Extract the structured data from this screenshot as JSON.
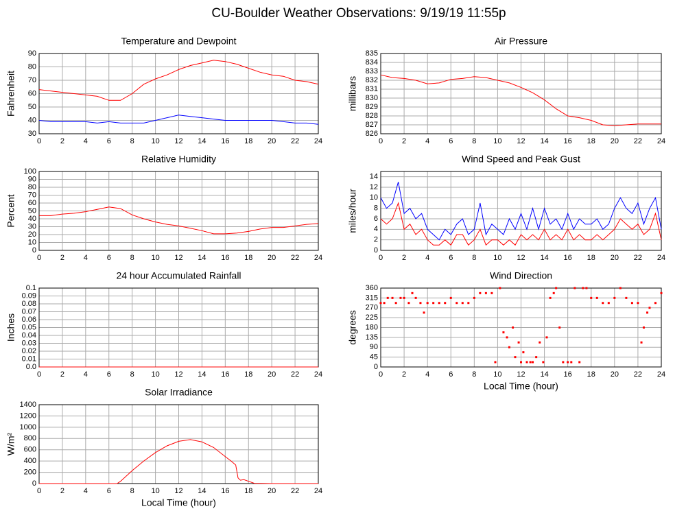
{
  "title": "CU-Boulder Weather Observations: 9/19/19 11:55p",
  "chart_data": [
    {
      "type": "line",
      "title": "Temperature and Dewpoint",
      "ylabel": "Fahrenheit",
      "x": [
        0,
        1,
        2,
        3,
        4,
        5,
        6,
        7,
        8,
        9,
        10,
        11,
        12,
        13,
        14,
        15,
        16,
        17,
        18,
        19,
        20,
        21,
        22,
        23,
        24
      ],
      "series": [
        {
          "color": "#ff0000",
          "values": [
            63,
            62,
            61,
            60,
            59,
            58,
            55,
            55,
            60,
            67,
            71,
            74,
            78,
            81,
            83,
            85,
            84,
            82,
            79,
            76,
            74,
            73,
            70,
            69,
            67
          ]
        },
        {
          "color": "#0000ff",
          "values": [
            40,
            39,
            39,
            39,
            39,
            38,
            39,
            38,
            38,
            38,
            40,
            42,
            44,
            43,
            42,
            41,
            40,
            40,
            40,
            40,
            40,
            39,
            38,
            38,
            37
          ]
        }
      ],
      "xlim": [
        0,
        24
      ],
      "xticks": [
        0,
        2,
        4,
        6,
        8,
        10,
        12,
        14,
        16,
        18,
        20,
        22,
        24
      ],
      "ylim": [
        30,
        90
      ],
      "yticks": [
        30,
        40,
        50,
        60,
        70,
        80,
        90
      ],
      "grid": true
    },
    {
      "type": "line",
      "title": "Air Pressure",
      "ylabel": "millibars",
      "x": [
        0,
        1,
        2,
        3,
        4,
        5,
        6,
        7,
        8,
        9,
        10,
        11,
        12,
        13,
        14,
        15,
        16,
        17,
        18,
        19,
        20,
        21,
        22,
        23,
        24
      ],
      "series": [
        {
          "color": "#ff0000",
          "values": [
            832.6,
            832.3,
            832.2,
            832.0,
            831.6,
            831.7,
            832.1,
            832.2,
            832.4,
            832.3,
            832.0,
            831.7,
            831.2,
            830.6,
            829.8,
            828.8,
            828.0,
            827.8,
            827.5,
            827.0,
            826.9,
            827.0,
            827.1,
            827.1,
            827.1
          ]
        }
      ],
      "xlim": [
        0,
        24
      ],
      "xticks": [
        0,
        2,
        4,
        6,
        8,
        10,
        12,
        14,
        16,
        18,
        20,
        22,
        24
      ],
      "ylim": [
        826,
        835
      ],
      "yticks": [
        826,
        827,
        828,
        829,
        830,
        831,
        832,
        833,
        834,
        835
      ],
      "grid": true
    },
    {
      "type": "line",
      "title": "Relative Humidity",
      "ylabel": "Percent",
      "x": [
        0,
        1,
        2,
        3,
        4,
        5,
        6,
        7,
        8,
        9,
        10,
        11,
        12,
        13,
        14,
        15,
        16,
        17,
        18,
        19,
        20,
        21,
        22,
        23,
        24
      ],
      "series": [
        {
          "color": "#ff0000",
          "values": [
            44,
            44,
            46,
            47,
            49,
            52,
            55,
            53,
            45,
            40,
            36,
            33,
            31,
            28,
            25,
            21,
            21,
            22,
            24,
            27,
            29,
            29,
            31,
            33,
            34
          ]
        }
      ],
      "xlim": [
        0,
        24
      ],
      "xticks": [
        0,
        2,
        4,
        6,
        8,
        10,
        12,
        14,
        16,
        18,
        20,
        22,
        24
      ],
      "ylim": [
        0,
        100
      ],
      "yticks": [
        0,
        10,
        20,
        30,
        40,
        50,
        60,
        70,
        80,
        90,
        100
      ],
      "grid": true
    },
    {
      "type": "line",
      "title": "Wind Speed and Peak Gust",
      "ylabel": "miles/hour",
      "x": [
        0,
        0.5,
        1,
        1.5,
        2,
        2.5,
        3,
        3.5,
        4,
        4.5,
        5,
        5.5,
        6,
        6.5,
        7,
        7.5,
        8,
        8.5,
        9,
        9.5,
        10,
        10.5,
        11,
        11.5,
        12,
        12.5,
        13,
        13.5,
        14,
        14.5,
        15,
        15.5,
        16,
        16.5,
        17,
        17.5,
        18,
        18.5,
        19,
        19.5,
        20,
        20.5,
        21,
        21.5,
        22,
        22.5,
        23,
        23.5,
        24
      ],
      "series": [
        {
          "color": "#0000ff",
          "values": [
            10,
            8,
            9,
            13,
            7,
            8,
            6,
            7,
            4,
            3,
            2,
            4,
            3,
            5,
            6,
            3,
            4,
            9,
            3,
            5,
            4,
            3,
            6,
            4,
            7,
            4,
            8,
            4,
            8,
            5,
            6,
            4,
            7,
            4,
            6,
            5,
            5,
            6,
            4,
            5,
            8,
            10,
            8,
            7,
            9,
            5,
            8,
            10,
            4
          ]
        },
        {
          "color": "#ff0000",
          "values": [
            6,
            5,
            6,
            9,
            4,
            5,
            3,
            4,
            2,
            1,
            1,
            2,
            1,
            3,
            3,
            1,
            2,
            4,
            1,
            2,
            2,
            1,
            2,
            1,
            3,
            2,
            3,
            2,
            4,
            2,
            3,
            2,
            4,
            2,
            3,
            2,
            2,
            3,
            2,
            3,
            4,
            6,
            5,
            4,
            5,
            3,
            4,
            7,
            2
          ]
        }
      ],
      "xlim": [
        0,
        24
      ],
      "xticks": [
        0,
        2,
        4,
        6,
        8,
        10,
        12,
        14,
        16,
        18,
        20,
        22,
        24
      ],
      "ylim": [
        0,
        15
      ],
      "yticks": [
        0,
        2,
        4,
        6,
        8,
        10,
        12,
        14
      ],
      "grid": true
    },
    {
      "type": "line",
      "title": "24 hour Accumulated Rainfall",
      "ylabel": "Inches",
      "x": [
        0,
        24
      ],
      "series": [
        {
          "color": "#ff0000",
          "values": [
            0,
            0
          ]
        }
      ],
      "xlim": [
        0,
        24
      ],
      "xticks": [
        0,
        2,
        4,
        6,
        8,
        10,
        12,
        14,
        16,
        18,
        20,
        22,
        24
      ],
      "ylim": [
        0,
        0.1
      ],
      "yticks": [
        {
          "value": 0,
          "label": "0.0"
        },
        0.01,
        0.02,
        0.03,
        0.04,
        0.05,
        0.06,
        0.07,
        0.08,
        0.09,
        0.1
      ],
      "grid": true
    },
    {
      "type": "scatter",
      "title": "Wind Direction",
      "ylabel": "degrees",
      "xlabel": "Local Time (hour)",
      "x": [
        0,
        0.3,
        0.6,
        1,
        1.3,
        1.7,
        2,
        2.4,
        2.7,
        3,
        3.4,
        3.7,
        4,
        4.5,
        5,
        5.5,
        6,
        6.5,
        7,
        7.5,
        8,
        8.5,
        9,
        9.5,
        9.8,
        10.2,
        10.5,
        10.8,
        11,
        11.3,
        11.5,
        11.8,
        12,
        12.2,
        12.5,
        12.8,
        13,
        13.3,
        13.6,
        13.9,
        14.2,
        14.5,
        14.8,
        15,
        15.3,
        15.6,
        16,
        16.3,
        16.6,
        17,
        17.3,
        17.6,
        18,
        18.5,
        19,
        19.5,
        20,
        20.5,
        21,
        21.5,
        22,
        22.3,
        22.5,
        22.8,
        23,
        23.5,
        24
      ],
      "values": [
        292,
        292,
        315,
        315,
        292,
        315,
        315,
        292,
        337,
        315,
        292,
        248,
        292,
        292,
        292,
        292,
        315,
        292,
        292,
        292,
        315,
        337,
        337,
        337,
        22,
        360,
        158,
        135,
        90,
        180,
        45,
        112,
        22,
        67,
        22,
        22,
        22,
        45,
        112,
        22,
        135,
        315,
        337,
        360,
        180,
        22,
        22,
        22,
        360,
        22,
        360,
        360,
        315,
        315,
        292,
        292,
        315,
        360,
        315,
        292,
        292,
        112,
        180,
        248,
        270,
        292,
        337
      ],
      "color": "#ff0000",
      "xlim": [
        0,
        24
      ],
      "xticks": [
        0,
        2,
        4,
        6,
        8,
        10,
        12,
        14,
        16,
        18,
        20,
        22,
        24
      ],
      "ylim": [
        0,
        360
      ],
      "yticks": [
        0,
        45,
        90,
        135,
        180,
        225,
        270,
        315,
        360
      ],
      "grid": true
    },
    {
      "type": "line",
      "title": "Solar Irradiance",
      "ylabel": "W/m²",
      "xlabel": "Local Time (hour)",
      "x": [
        0,
        6,
        6.7,
        7,
        8,
        9,
        10,
        11,
        12,
        13,
        14,
        15,
        16,
        16.5,
        16.9,
        17.1,
        17.3,
        17.6,
        18,
        18.5,
        20,
        24
      ],
      "series": [
        {
          "color": "#ff0000",
          "values": [
            0,
            0,
            0,
            40,
            230,
            400,
            550,
            670,
            750,
            780,
            740,
            640,
            480,
            400,
            330,
            100,
            60,
            70,
            40,
            5,
            0,
            0
          ]
        }
      ],
      "xlim": [
        0,
        24
      ],
      "xticks": [
        0,
        2,
        4,
        6,
        8,
        10,
        12,
        14,
        16,
        18,
        20,
        22,
        24
      ],
      "ylim": [
        0,
        1400
      ],
      "yticks": [
        0,
        200,
        400,
        600,
        800,
        1000,
        1200,
        1400
      ],
      "grid": true
    }
  ]
}
